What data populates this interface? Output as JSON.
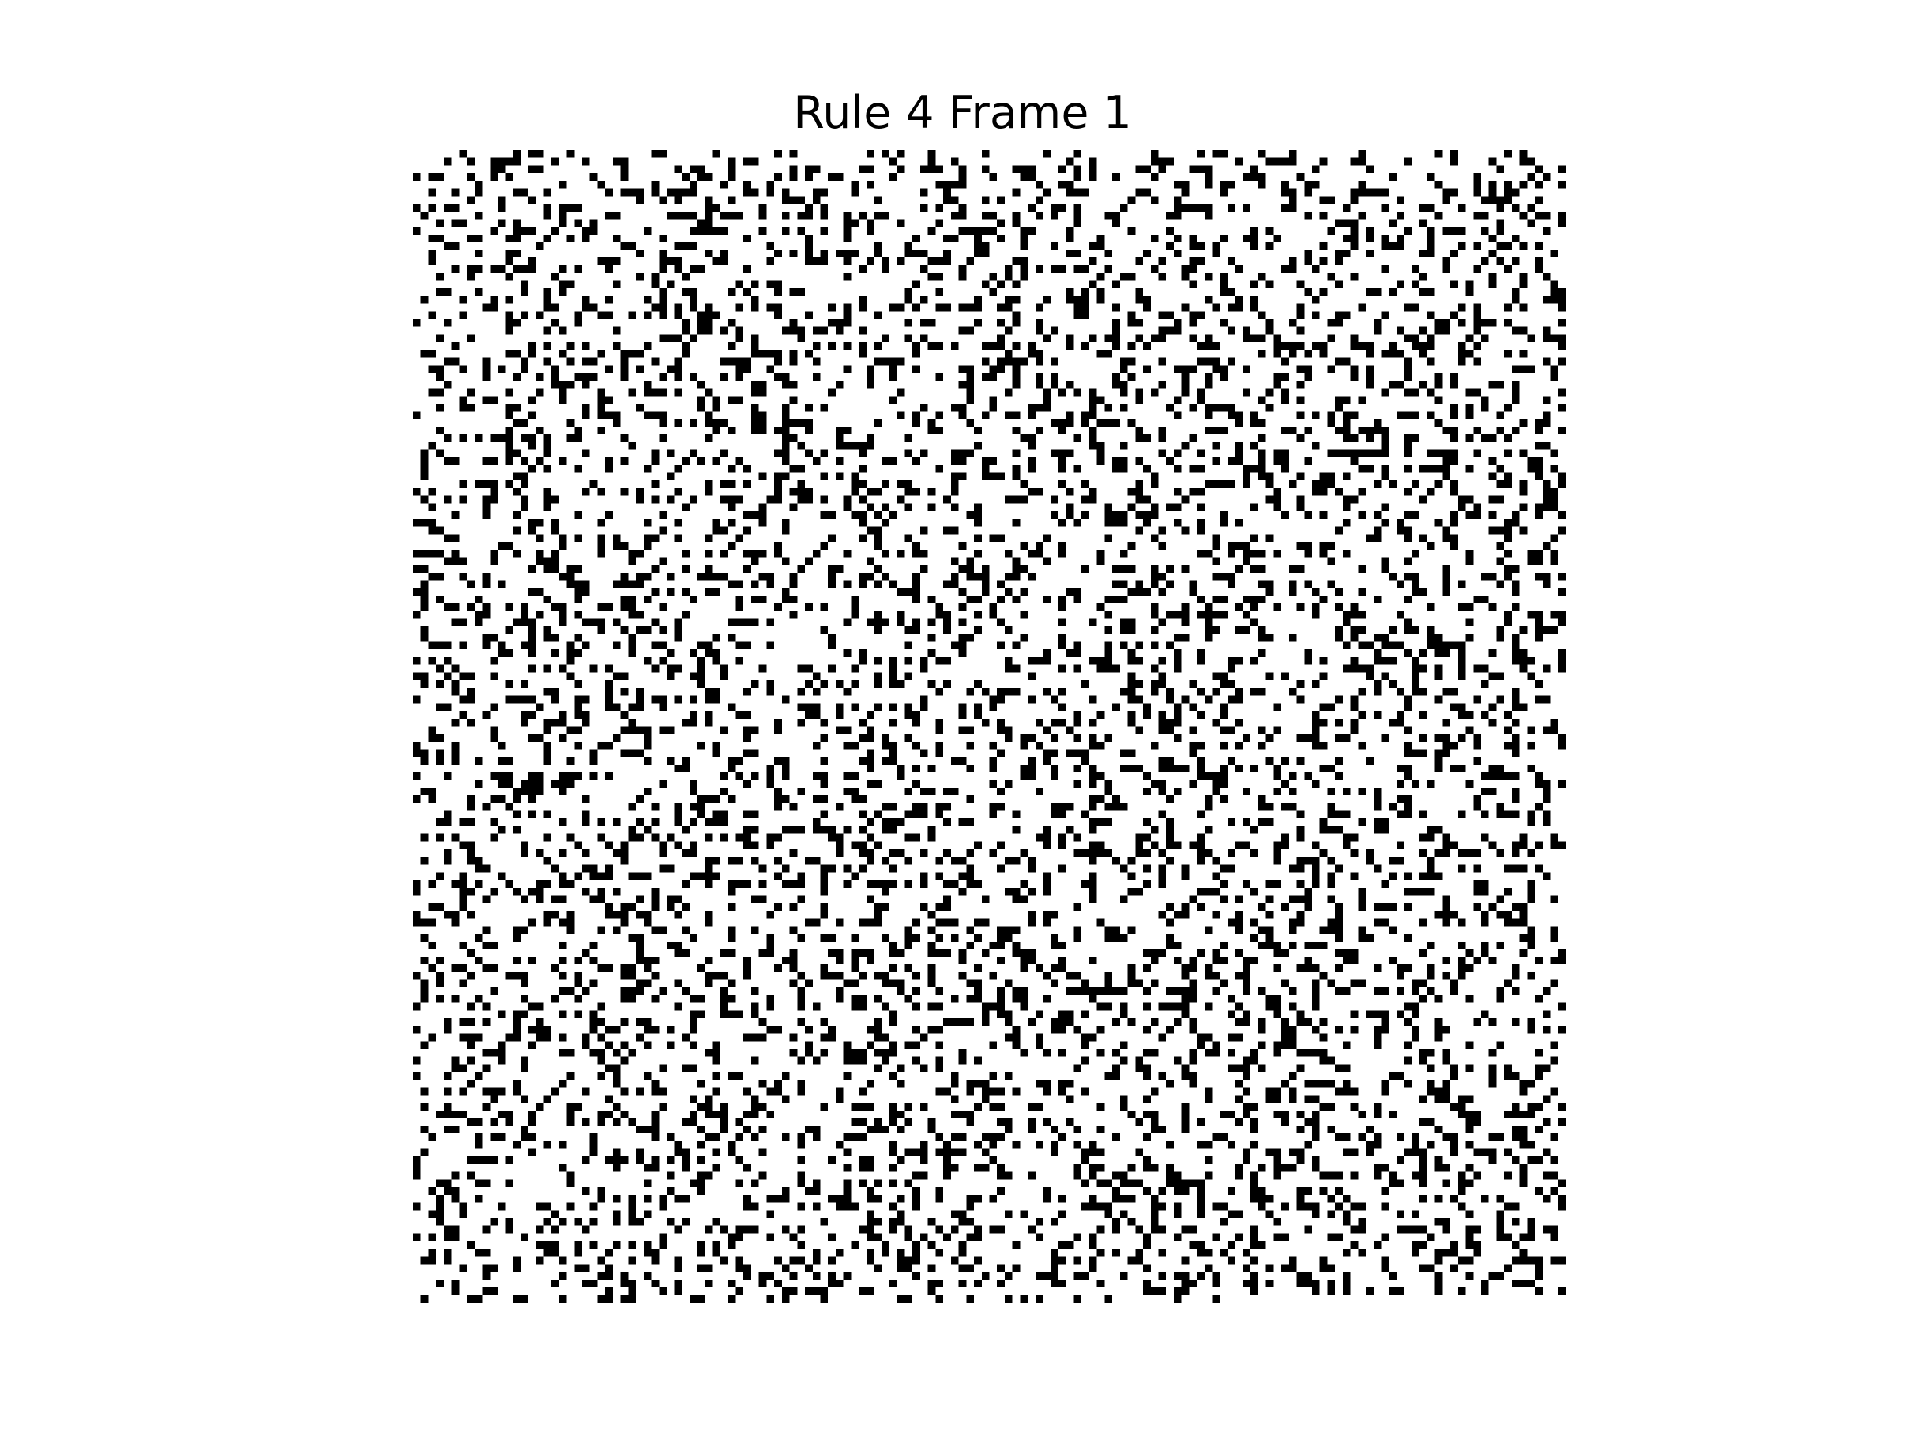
{
  "figure": {
    "title": "Rule 4 Frame 1"
  },
  "grid": {
    "rows": 150,
    "cols": 150,
    "live_fraction": 0.25,
    "alive_color": "#000000",
    "dead_color": "#ffffff"
  }
}
